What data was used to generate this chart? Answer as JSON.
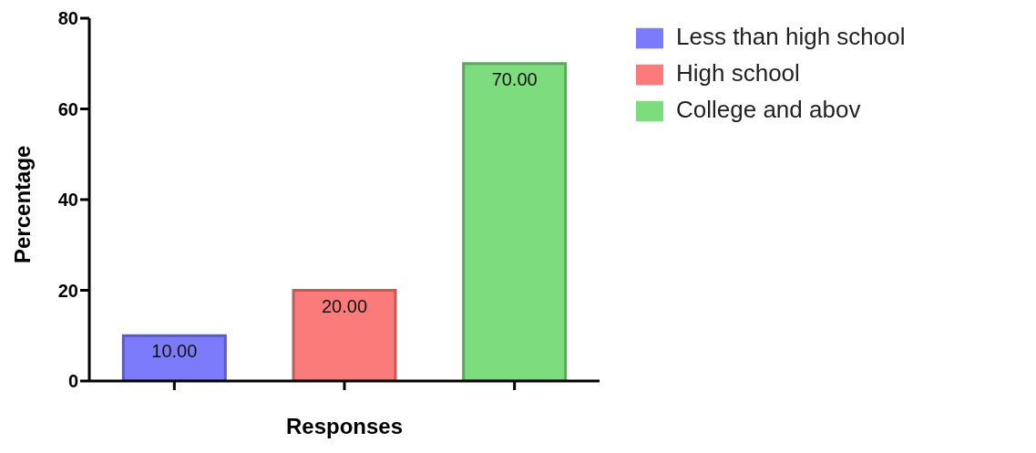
{
  "chart_data": {
    "type": "bar",
    "xlabel": "Responses",
    "ylabel": "Percentage",
    "categories": [
      null,
      null,
      null
    ],
    "series": [
      {
        "name": "Less than high school",
        "color": "#7b7bfb",
        "values": [
          10,
          null,
          null
        ],
        "value_labels": [
          "10.00",
          null,
          null
        ]
      },
      {
        "name": "High school",
        "color": "#fb7b7b",
        "values": [
          null,
          20,
          null
        ],
        "value_labels": [
          null,
          "20.00",
          null
        ]
      },
      {
        "name": "College and abov",
        "color": "#7ddc7d",
        "values": [
          null,
          null,
          70
        ],
        "value_labels": [
          null,
          null,
          "70.00"
        ]
      }
    ],
    "ylim": [
      0,
      80
    ],
    "yticks": [
      0,
      20,
      40,
      60,
      80
    ],
    "grid": false,
    "legend": "top right"
  }
}
